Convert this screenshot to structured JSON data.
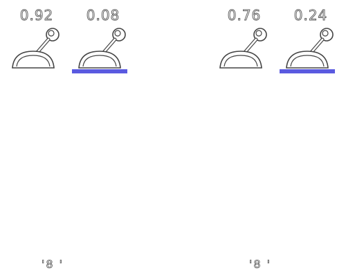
{
  "accent_color": "#5a5ae0",
  "groups": [
    {
      "units": [
        {
          "value": "0.92",
          "icon": "lever-icon",
          "selected": false
        },
        {
          "value": "0.08",
          "icon": "lever-icon",
          "selected": true
        }
      ],
      "footer": "'8 '"
    },
    {
      "units": [
        {
          "value": "0.76",
          "icon": "lever-icon",
          "selected": false
        },
        {
          "value": "0.24",
          "icon": "lever-icon",
          "selected": true
        }
      ],
      "footer": "'8 '"
    }
  ]
}
